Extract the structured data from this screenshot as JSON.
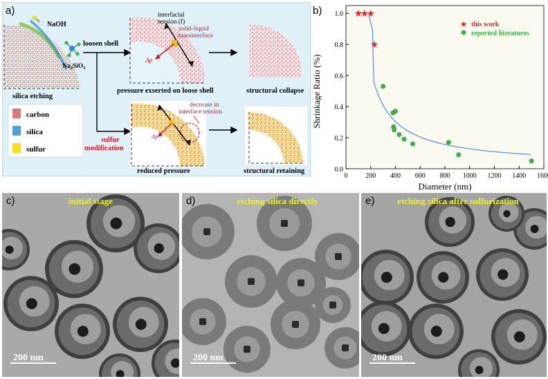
{
  "panel_a": {
    "label": "a)",
    "reagent_1": "NaOH",
    "reagent_2_main": "Na",
    "reagent_2_sub1": "2",
    "reagent_2_mid": "SiO",
    "reagent_2_sub2": "3",
    "step_loosen": "loosen shell",
    "step_sulfur_line1": "sulfur",
    "step_sulfur_line2": "modification",
    "annot_tension_line1": "interfacial",
    "annot_tension_line2": "tension (f)",
    "annot_nano_line1": "solid-liquid",
    "annot_nano_line2": "nanointerface",
    "annot_dp": "Δp",
    "annot_dp2": "Δp",
    "annot_decrease_line1": "decrease in",
    "annot_decrease_line2": "interface tension",
    "caption_etching": "silica etching",
    "caption_pressure_loose": "pressure exserted on loose shell",
    "caption_collapse": "structural collapse",
    "caption_reduced": "reduced pressure",
    "caption_retaining": "structural retaining",
    "legend": [
      {
        "label": "carbon",
        "color": "#d97b7b"
      },
      {
        "label": "silica",
        "color": "#4aa3d6"
      },
      {
        "label": "sulfur",
        "color": "#f4e01c"
      }
    ]
  },
  "panel_b": {
    "label": "b)",
    "chart_data": {
      "type": "scatter",
      "xlabel": "Diameter (nm)",
      "ylabel": "Shrinkage Ratio (%)",
      "xlim": [
        0,
        1600
      ],
      "ylim": [
        0.0,
        1.05
      ],
      "xticks": [
        0,
        200,
        400,
        600,
        800,
        1000,
        1200,
        1400,
        1600
      ],
      "yticks": [
        "0.0",
        "0.2",
        "0.4",
        "0.6",
        "0.8",
        "1.0"
      ],
      "legend_position": "top-right",
      "series": [
        {
          "name": "this work",
          "marker": "star",
          "color": "#e8252a",
          "x": [
            100,
            150,
            200,
            230
          ],
          "y": [
            1.0,
            1.0,
            1.0,
            0.8
          ]
        },
        {
          "name": "reported literatures",
          "marker": "circle",
          "color": "#3fb24a",
          "x": [
            300,
            380,
            385,
            390,
            400,
            430,
            470,
            540,
            830,
            910,
            1500
          ],
          "y": [
            0.53,
            0.36,
            0.27,
            0.25,
            0.37,
            0.22,
            0.19,
            0.16,
            0.17,
            0.09,
            0.05
          ]
        }
      ],
      "fit_color": "#4a90d9"
    }
  },
  "panel_c": {
    "label": "c)",
    "title": "initial stage",
    "scale": "200 nm"
  },
  "panel_d": {
    "label": "d)",
    "title": "etching silica directly",
    "scale": "200 nm"
  },
  "panel_e": {
    "label": "e)",
    "title": "etching silica after sulfurization",
    "scale": "200 nm"
  }
}
